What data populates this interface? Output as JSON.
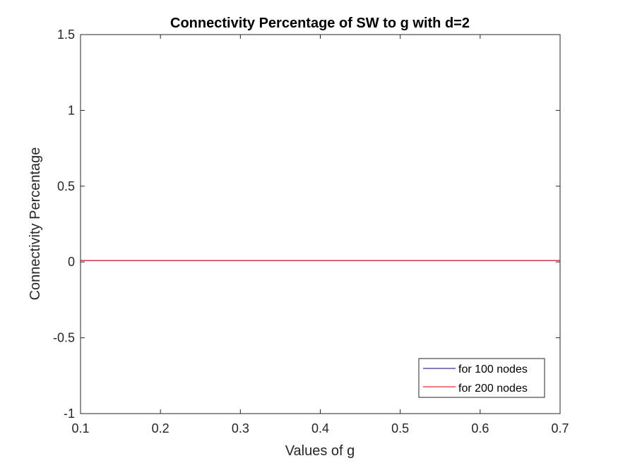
{
  "chart_data": {
    "type": "line",
    "title": "Connectivity Percentage of SW to g with d=2",
    "xlabel": "Values of g",
    "ylabel": "Connectivity Percentage",
    "xlim": [
      0.1,
      0.7
    ],
    "ylim": [
      -1,
      1.5
    ],
    "xticks": [
      0.1,
      0.2,
      0.3,
      0.4,
      0.5,
      0.6,
      0.7
    ],
    "xtick_labels": [
      "0.1",
      "0.2",
      "0.3",
      "0.4",
      "0.5",
      "0.6",
      "0.7"
    ],
    "yticks": [
      -1,
      -0.5,
      0,
      0.5,
      1,
      1.5
    ],
    "ytick_labels": [
      "-1",
      "-0.5",
      "0",
      "0.5",
      "1",
      "1.5"
    ],
    "grid": false,
    "legend_position": "bottom-right",
    "series": [
      {
        "name": "for 100 nodes",
        "color": "#00007f",
        "x": [
          0.1,
          0.7
        ],
        "y": [
          0.01,
          0.01
        ]
      },
      {
        "name": "for 200 nodes",
        "color": "#e00000",
        "x": [
          0.1,
          0.7
        ],
        "y": [
          0.01,
          0.01
        ]
      }
    ]
  }
}
